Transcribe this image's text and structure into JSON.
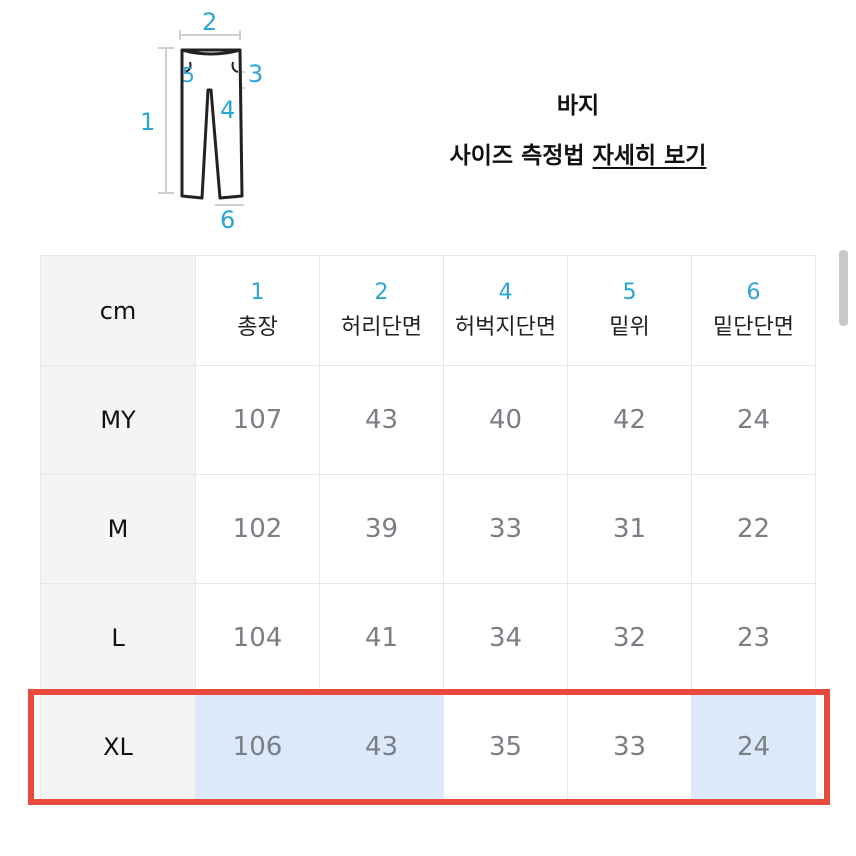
{
  "diagram": {
    "labels": [
      "1",
      "2",
      "3",
      "4",
      "5",
      "6"
    ],
    "accent": "#2ba5d4"
  },
  "header": {
    "title": "바지",
    "subtitle_plain": "사이즈 측정법 ",
    "subtitle_link": "자세히 보기"
  },
  "table": {
    "unit": "cm",
    "columns": [
      {
        "num": "1",
        "name": "총장"
      },
      {
        "num": "2",
        "name": "허리단면"
      },
      {
        "num": "4",
        "name": "허벅지단면"
      },
      {
        "num": "5",
        "name": "밑위"
      },
      {
        "num": "6",
        "name": "밑단단면"
      }
    ],
    "rows": [
      {
        "size": "MY",
        "values": [
          "107",
          "43",
          "40",
          "42",
          "24"
        ]
      },
      {
        "size": "M",
        "values": [
          "102",
          "39",
          "33",
          "31",
          "22"
        ]
      },
      {
        "size": "L",
        "values": [
          "104",
          "41",
          "34",
          "32",
          "23"
        ]
      },
      {
        "size": "XL",
        "values": [
          "106",
          "43",
          "35",
          "33",
          "24"
        ],
        "highlighted": true,
        "highlighted_columns": [
          0,
          1,
          4
        ]
      }
    ]
  },
  "colors": {
    "highlight_box": "#e84a3e",
    "cell_highlight": "#dce9fb"
  }
}
